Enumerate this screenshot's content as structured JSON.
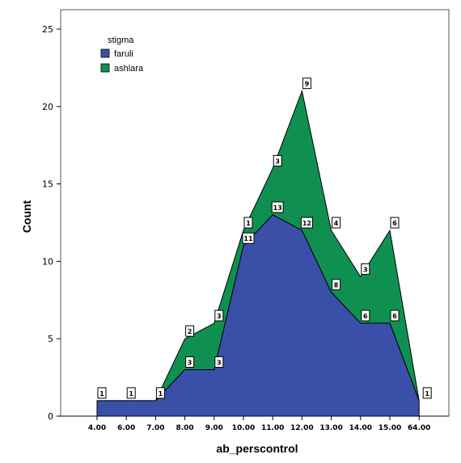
{
  "chart_data": {
    "type": "area",
    "stacked": true,
    "xlabel": "ab_perscontrol",
    "ylabel": "Count",
    "ylim": [
      0,
      26
    ],
    "yticks": [
      0,
      5,
      10,
      15,
      20,
      25
    ],
    "categories": [
      "4.00",
      "6.00",
      "7.00",
      "8.00",
      "9.00",
      "10.00",
      "11.00",
      "12.00",
      "13.00",
      "14.00",
      "15.00",
      "64.00"
    ],
    "legend": {
      "title": "stigma",
      "position": "top-left"
    },
    "series": [
      {
        "name": "faruli",
        "color": "#3a50a8",
        "values": [
          1,
          1,
          1,
          3,
          3,
          11,
          13,
          12,
          8,
          6,
          6,
          1
        ],
        "labels": [
          "1",
          "1",
          "1",
          "3",
          "3",
          "11",
          "13",
          "12",
          "8",
          "6",
          "6",
          "1"
        ]
      },
      {
        "name": "ashlara",
        "color": "#109050",
        "values": [
          0,
          0,
          0,
          2,
          3,
          1,
          3,
          9,
          4,
          3,
          6,
          0
        ],
        "labels": [
          "",
          "",
          "",
          "2",
          "3",
          "1",
          "3",
          "9",
          "4",
          "3",
          "6",
          ""
        ]
      }
    ]
  }
}
